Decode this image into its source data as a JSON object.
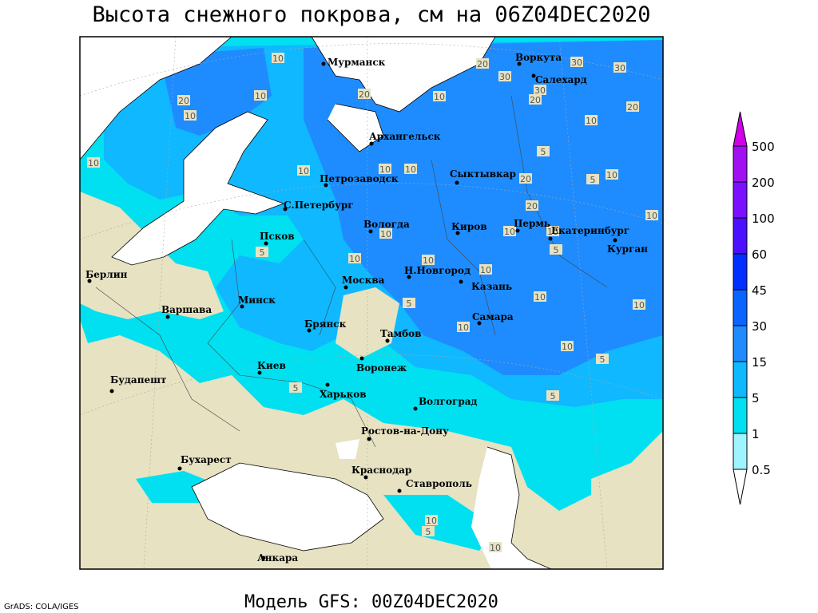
{
  "header": {
    "title": "Высота снежного покрова, см на 06Z04DEC2020"
  },
  "cities": [
    "Мурманск",
    "Воркута",
    "Салехард",
    "Архангельск",
    "Петрозаводск",
    "Сыктывкар",
    "С.Петербург",
    "Вологда",
    "Киров",
    "Пермь",
    "Екатеринбург",
    "Курган",
    "Псков",
    "Берлин",
    "Н.Новгород",
    "Москва",
    "Казань",
    "Минск",
    "Варшава",
    "Самара",
    "Брянск",
    "Тамбов",
    "Киев",
    "Воронеж",
    "Будапешт",
    "Харьков",
    "Волгоград",
    "Ростов-на-Дону",
    "Бухарест",
    "Краснодар",
    "Ставрополь",
    "Анкара"
  ],
  "contour_labels": [
    10,
    20,
    30,
    30,
    30,
    20,
    10,
    30,
    20,
    20,
    10,
    10,
    20,
    10,
    5,
    10,
    10,
    10,
    10,
    20,
    5,
    10,
    20,
    10,
    10,
    10,
    10,
    5,
    10,
    5,
    10,
    10,
    10,
    10,
    5,
    10,
    10,
    5,
    5,
    5,
    10,
    5,
    10
  ],
  "legend": {
    "levels": [
      0.5,
      1,
      5,
      15,
      30,
      45,
      60,
      100,
      200,
      500
    ],
    "colors": [
      "#ffffff",
      "#9ef4ff",
      "#00e0f0",
      "#10b8ff",
      "#1e8cff",
      "#0a64ff",
      "#0030ff",
      "#4a10ff",
      "#7a10ff",
      "#a010f0",
      "#d000e8"
    ]
  },
  "footer": {
    "credit": "GrADS: COLA/IGES",
    "model": "Модель GFS: 00Z04DEC2020"
  }
}
